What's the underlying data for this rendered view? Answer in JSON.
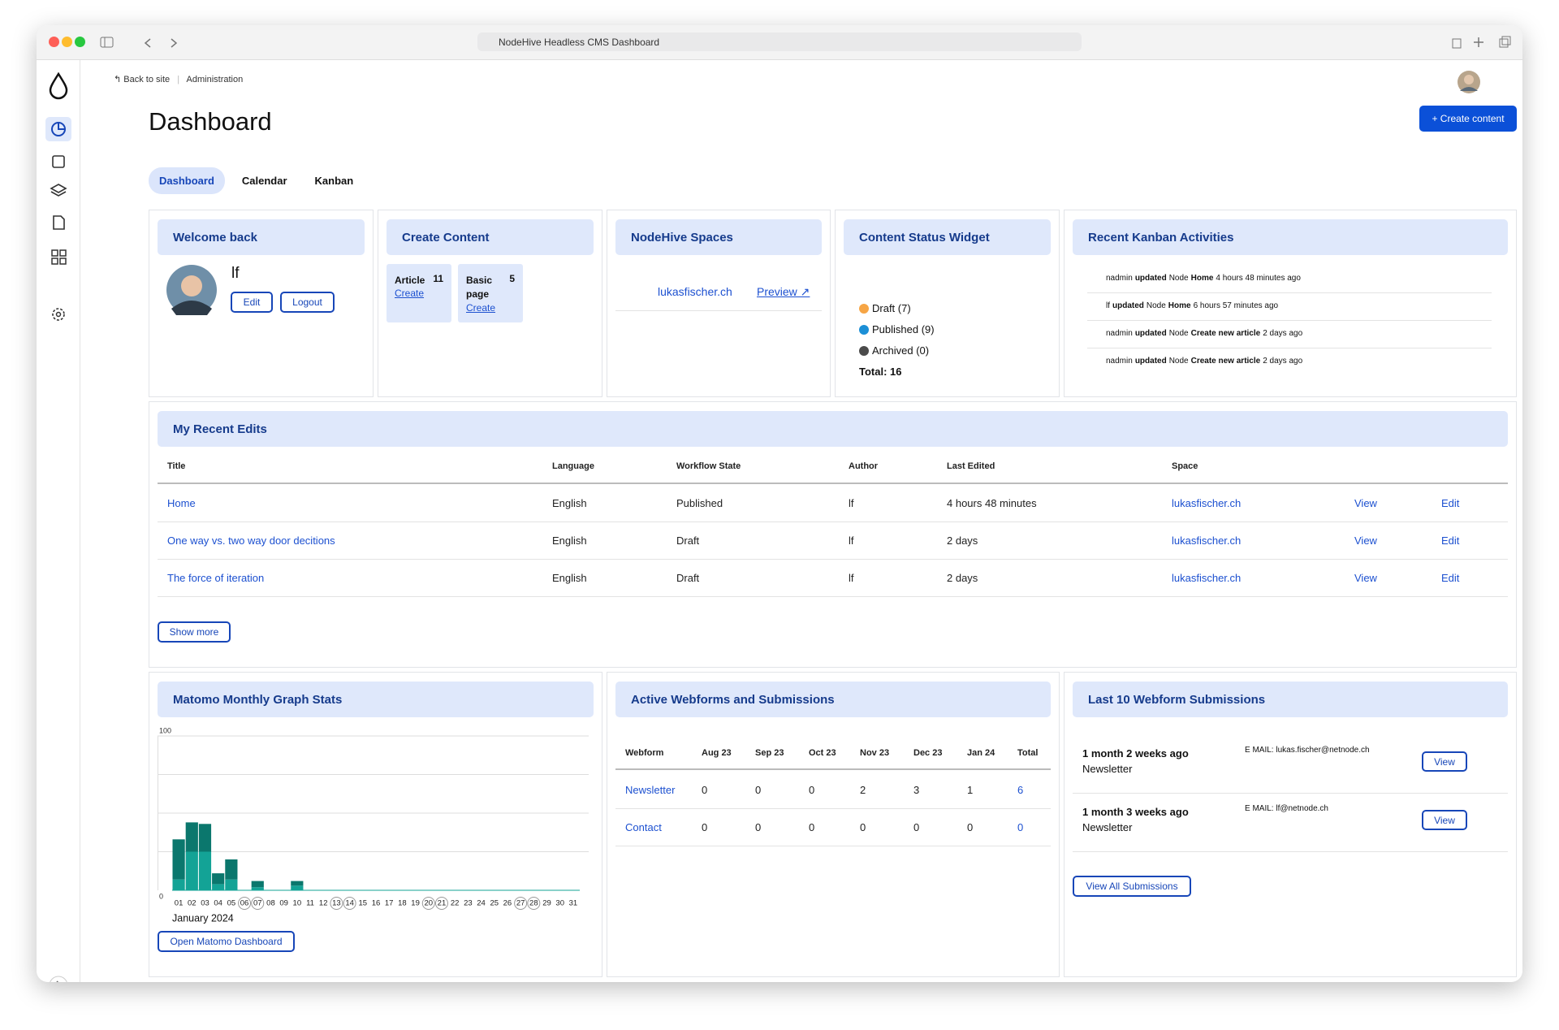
{
  "browser": {
    "address": "NodeHive Headless CMS Dashboard"
  },
  "breadcrumb": [
    "Back to site",
    "Administration"
  ],
  "header": {
    "title": "Dashboard",
    "button": "+ Create content"
  },
  "tabs": [
    "Dashboard",
    "Calendar",
    "Kanban"
  ],
  "welcome": {
    "title": "Welcome back",
    "user": "lf",
    "buttons": [
      "Edit",
      "Logout"
    ]
  },
  "create_content": {
    "title": "Create Content",
    "items": [
      {
        "name": "Article",
        "count": 11,
        "link": "Create"
      },
      {
        "name": "Basic page",
        "count": 5,
        "link": "Create"
      }
    ]
  },
  "spaces": {
    "title": "NodeHive Spaces",
    "items": [
      {
        "name": "lukasfischer.ch",
        "link": "Preview ↗"
      }
    ]
  },
  "chart_data": [
    {
      "type": "progress",
      "title": "Content Status Widget",
      "categories": [
        "Draft (7)",
        "Published (9)",
        "Archived (0)"
      ],
      "values": [
        7,
        9,
        0
      ],
      "colors": [
        "#f6a545",
        "#1b8fd6",
        "#4b4b4b"
      ],
      "total": "Total: 16"
    },
    {
      "type": "bar",
      "title": "Matomo Monthly Graph Stats",
      "stacked": true,
      "categories": [
        "01",
        "02",
        "03",
        "04",
        "05",
        "06",
        "07",
        "08",
        "09",
        "10",
        "11",
        "12",
        "13",
        "14",
        "15",
        "16",
        "17",
        "18",
        "19",
        "20",
        "21",
        "22",
        "23",
        "24",
        "25",
        "26",
        "27",
        "28",
        "29",
        "30",
        "31"
      ],
      "circled": [
        5,
        6,
        12,
        13,
        19,
        20,
        26,
        27
      ],
      "series": [
        {
          "color": "#13a396",
          "values": [
            7,
            25,
            25,
            4,
            7,
            0,
            2,
            0,
            0,
            3,
            0,
            0,
            0,
            0,
            0,
            0,
            0,
            0,
            0,
            0,
            0,
            0,
            0,
            0,
            0,
            0,
            0,
            0,
            0,
            0,
            0
          ]
        },
        {
          "color": "#0b776d",
          "values": [
            26,
            19,
            18,
            7,
            13,
            0,
            4,
            0,
            0,
            3,
            0,
            0,
            0,
            0,
            0,
            0,
            0,
            0,
            0,
            0,
            0,
            0,
            0,
            0,
            0,
            0,
            0,
            0,
            0,
            0,
            0
          ]
        }
      ],
      "ylim": [
        0,
        100
      ],
      "yticks": [
        0,
        100
      ],
      "ygrid": [
        25,
        50,
        75,
        100
      ],
      "xlabel": "January 2024",
      "button": "Open Matomo Dashboard"
    }
  ],
  "kanban": {
    "title": "Recent Kanban Activities",
    "items": [
      {
        "user": "nadmin",
        "action": "updated",
        "type": "Node",
        "node": "Home",
        "time": "4 hours 48 minutes ago"
      },
      {
        "user": "lf",
        "action": "updated",
        "type": "Node",
        "node": "Home",
        "time": "6 hours 57 minutes ago"
      },
      {
        "user": "nadmin",
        "action": "updated",
        "type": "Node",
        "node": "Create new article",
        "time": "2 days ago"
      },
      {
        "user": "nadmin",
        "action": "updated",
        "type": "Node",
        "node": "Create new article",
        "time": "2 days ago"
      }
    ]
  },
  "recent_edits": {
    "title": "My Recent Edits",
    "headers": [
      "Title",
      "Language",
      "Workflow State",
      "Author",
      "Last Edited",
      "Space"
    ],
    "rows": [
      [
        "Home",
        "English",
        "Published",
        "lf",
        "4 hours 48 minutes",
        "lukasfischer.ch",
        "View",
        "Edit"
      ],
      [
        "One way vs. two way door decitions",
        "English",
        "Draft",
        "lf",
        "2 days",
        "lukasfischer.ch",
        "View",
        "Edit"
      ],
      [
        "The force of iteration",
        "English",
        "Draft",
        "lf",
        "2 days",
        "lukasfischer.ch",
        "View",
        "Edit"
      ]
    ],
    "button": "Show more"
  },
  "webforms": {
    "title": "Active Webforms and Submissions",
    "headers": [
      "Webform",
      "Aug 23",
      "Sep 23",
      "Oct 23",
      "Nov 23",
      "Dec 23",
      "Jan 24",
      "Total"
    ],
    "rows": [
      [
        "Newsletter",
        0,
        0,
        0,
        2,
        3,
        1,
        6
      ],
      [
        "Contact",
        0,
        0,
        0,
        0,
        0,
        0,
        0
      ]
    ]
  },
  "submissions": {
    "title": "Last 10 Webform Submissions",
    "items": [
      {
        "time": "1 month 2 weeks ago",
        "form": "Newsletter",
        "email": "E MAIL: lukas.fischer@netnode.ch",
        "button": "View"
      },
      {
        "time": "1 month 3 weeks ago",
        "form": "Newsletter",
        "email": "E MAIL: lf@netnode.ch",
        "button": "View"
      }
    ],
    "button": "View All Submissions"
  }
}
